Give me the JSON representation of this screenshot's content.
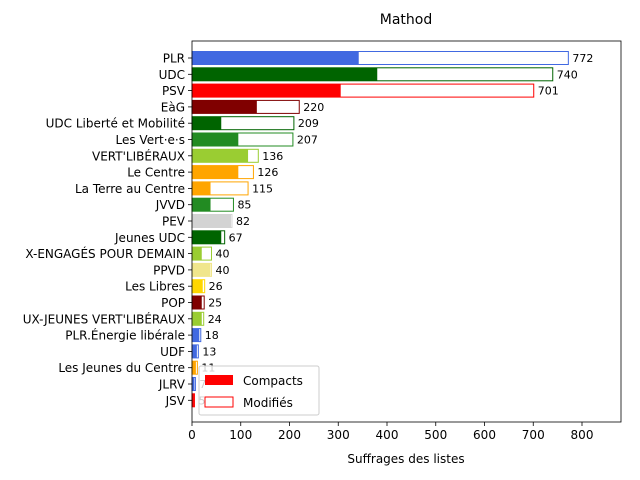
{
  "chart_data": {
    "type": "bar",
    "orientation": "horizontal",
    "title": "Mathod",
    "xlabel": "Suffrages des listes",
    "ylabel": "",
    "xlim": [
      0,
      880
    ],
    "xticks": [
      0,
      100,
      200,
      300,
      400,
      500,
      600,
      700,
      800
    ],
    "grid": false,
    "legend_position": "lower-left",
    "categories": [
      "PLR",
      "UDC",
      "PSV",
      "EàG",
      "UDC Liberté et Mobilité",
      "Les Vert·e·s",
      "VERT'LIBÉRAUX",
      "Le Centre",
      "La Terre au Centre",
      "JVVD",
      "PEV",
      "Jeunes UDC",
      "X-ENGAGÉS POUR DEMAIN",
      "PPVD",
      "Les Libres",
      "POP",
      "UX-JEUNES VERT'LIBÉRAUX",
      "PLR.Énergie libérale",
      "UDF",
      "Les Jeunes du Centre",
      "JLRV",
      "JSV"
    ],
    "colors": [
      "#4169e1",
      "#006400",
      "#ff0000",
      "#800000",
      "#006400",
      "#228b22",
      "#9acd32",
      "#ffa500",
      "#ffa500",
      "#228b22",
      "#d3d3d3",
      "#006400",
      "#9acd32",
      "#f0e68c",
      "#ffd700",
      "#800000",
      "#9acd32",
      "#4169e1",
      "#4169e1",
      "#ffa500",
      "#4169e1",
      "#ff0000"
    ],
    "series": [
      {
        "name": "Compacts",
        "values": [
          342,
          380,
          305,
          133,
          60,
          95,
          115,
          95,
          38,
          38,
          80,
          60,
          20,
          38,
          22,
          20,
          20,
          15,
          10,
          8,
          5,
          4
        ]
      },
      {
        "name": "Modifiés",
        "values": [
          772,
          740,
          701,
          220,
          209,
          207,
          136,
          126,
          115,
          85,
          82,
          67,
          40,
          40,
          26,
          25,
          24,
          18,
          13,
          11,
          7,
          5
        ]
      }
    ],
    "data_labels": [
      "772",
      "740",
      "701",
      "220",
      "209",
      "207",
      "136",
      "126",
      "115",
      "85",
      "82",
      "67",
      "40",
      "40",
      "26",
      "25",
      "24",
      "18",
      "13",
      "11",
      "7",
      "5"
    ],
    "legend_colors": {
      "Compacts": "#ff0000",
      "Modifiés": "#ff0000"
    }
  }
}
